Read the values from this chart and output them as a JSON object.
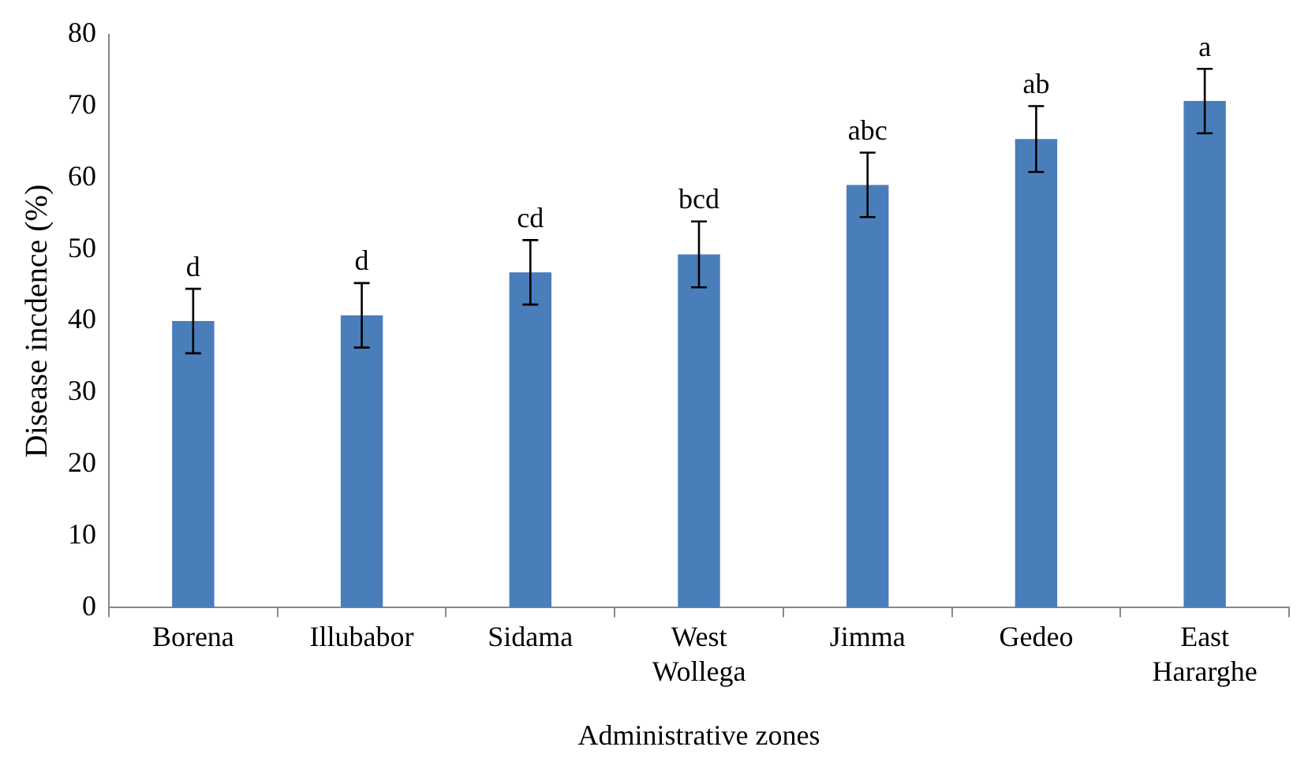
{
  "chart_data": {
    "type": "bar",
    "xlabel": "Administrative zones",
    "ylabel": "Disease incdence (%)",
    "categories": [
      "Borena",
      "Illubabor",
      "Sidama",
      "West Wollega",
      "Jimma",
      "Gedeo",
      "East Hararghe"
    ],
    "values": [
      40,
      40.8,
      46.8,
      49.3,
      59,
      65.4,
      70.7
    ],
    "errors": [
      4.5,
      4.5,
      4.5,
      4.6,
      4.5,
      4.6,
      4.5
    ],
    "color": "#4a7ebb",
    "ylim": [
      0,
      80
    ],
    "yticks": [
      0,
      10,
      20,
      30,
      40,
      50,
      60,
      70,
      80
    ],
    "grid": false,
    "legend": false,
    "annotations": [
      {
        "text": "d",
        "x": "Borena",
        "y": 44.5
      },
      {
        "text": "d",
        "x": "Illubabor",
        "y": 45.3
      },
      {
        "text": "cd",
        "x": "Sidama",
        "y": 51.3
      },
      {
        "text": "bcd",
        "x": "West Wollega",
        "y": 53.9
      },
      {
        "text": "abc",
        "x": "Jimma",
        "y": 63.5
      },
      {
        "text": "ab",
        "x": "Gedeo",
        "y": 70
      },
      {
        "text": "a",
        "x": "East Hararghe",
        "y": 75.2
      }
    ]
  }
}
